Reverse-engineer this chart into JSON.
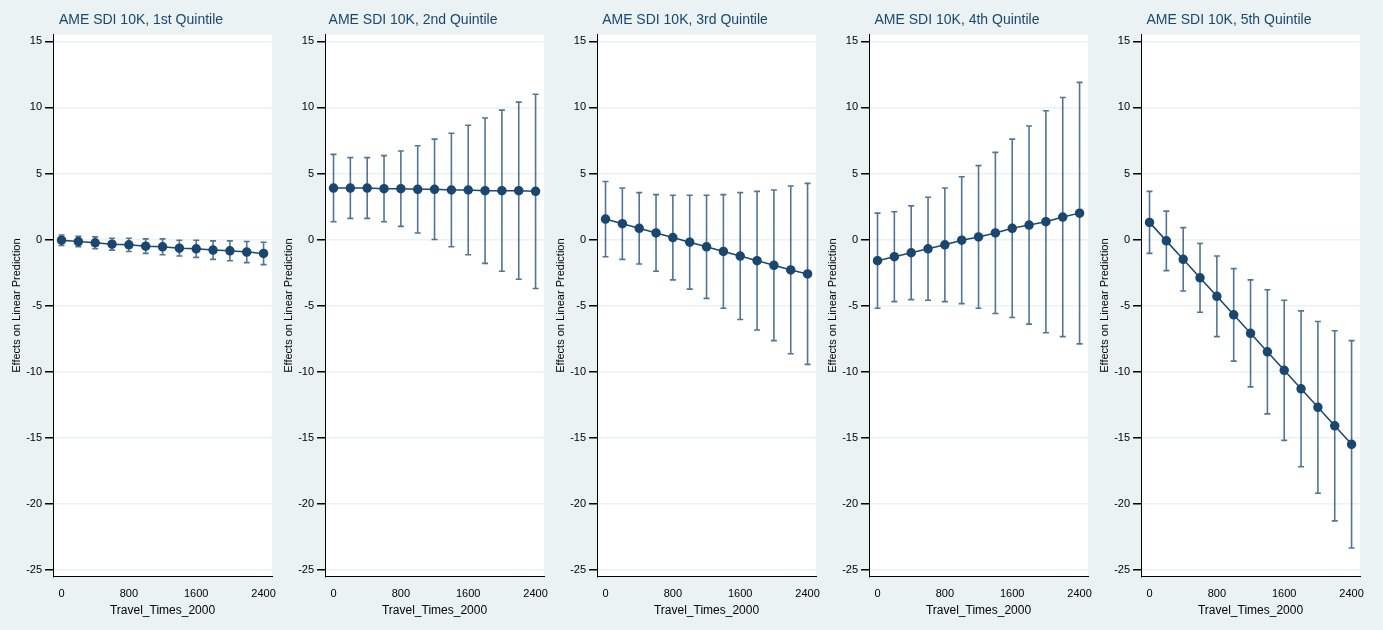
{
  "chart_data": [
    {
      "type": "line",
      "title": "AME SDI 10K, 1st Quintile",
      "xlabel": "Travel_Times_2000",
      "ylabel": "Effects on Linear Prediction",
      "color": "#1a476f",
      "marker": "circle",
      "grid": "y",
      "legend": false,
      "x": [
        0,
        200,
        400,
        600,
        800,
        1000,
        1200,
        1400,
        1600,
        1800,
        2000,
        2200,
        2400
      ],
      "values": [
        -0.05,
        -0.15,
        -0.25,
        -0.35,
        -0.4,
        -0.5,
        -0.55,
        -0.65,
        -0.7,
        -0.8,
        -0.85,
        -0.95,
        -1.05
      ],
      "errors": [
        0.4,
        0.4,
        0.45,
        0.45,
        0.5,
        0.55,
        0.6,
        0.6,
        0.65,
        0.7,
        0.75,
        0.8,
        0.85
      ],
      "xlim": [
        -100,
        2500
      ],
      "xticks": [
        0,
        800,
        1600,
        2400
      ],
      "ylim": [
        -25.5,
        15.5
      ],
      "yticks": [
        -25,
        -20,
        -15,
        -10,
        -5,
        0,
        5,
        10,
        15
      ]
    },
    {
      "type": "line",
      "title": "AME SDI 10K, 2nd Quintile",
      "xlabel": "Travel_Times_2000",
      "ylabel": "Effects on Linear Prediction",
      "color": "#1a476f",
      "marker": "circle",
      "grid": "y",
      "legend": false,
      "x": [
        0,
        200,
        400,
        600,
        800,
        1000,
        1200,
        1400,
        1600,
        1800,
        2000,
        2200,
        2400
      ],
      "values": [
        3.9,
        3.9,
        3.9,
        3.85,
        3.85,
        3.8,
        3.8,
        3.75,
        3.75,
        3.7,
        3.7,
        3.7,
        3.65
      ],
      "errors": [
        2.55,
        2.3,
        2.3,
        2.5,
        2.85,
        3.3,
        3.8,
        4.3,
        4.9,
        5.5,
        6.1,
        6.7,
        7.35
      ],
      "xlim": [
        -100,
        2500
      ],
      "xticks": [
        0,
        800,
        1600,
        2400
      ],
      "ylim": [
        -25.5,
        15.5
      ],
      "yticks": [
        -25,
        -20,
        -15,
        -10,
        -5,
        0,
        5,
        10,
        15
      ]
    },
    {
      "type": "line",
      "title": "AME SDI 10K, 3rd Quintile",
      "xlabel": "Travel_Times_2000",
      "ylabel": "Effects on Linear Prediction",
      "color": "#1a476f",
      "marker": "circle",
      "grid": "y",
      "legend": false,
      "x": [
        0,
        200,
        400,
        600,
        800,
        1000,
        1200,
        1400,
        1600,
        1800,
        2000,
        2200,
        2400
      ],
      "values": [
        1.55,
        1.2,
        0.85,
        0.5,
        0.15,
        -0.2,
        -0.55,
        -0.9,
        -1.25,
        -1.6,
        -1.95,
        -2.3,
        -2.6
      ],
      "errors": [
        2.85,
        2.7,
        2.7,
        2.9,
        3.2,
        3.55,
        3.9,
        4.3,
        4.8,
        5.25,
        5.7,
        6.35,
        6.85
      ],
      "xlim": [
        -100,
        2500
      ],
      "xticks": [
        0,
        800,
        1600,
        2400
      ],
      "ylim": [
        -25.5,
        15.5
      ],
      "yticks": [
        -25,
        -20,
        -15,
        -10,
        -5,
        0,
        5,
        10,
        15
      ]
    },
    {
      "type": "line",
      "title": "AME SDI 10K, 4th Quintile",
      "xlabel": "Travel_Times_2000",
      "ylabel": "Effects on Linear Prediction",
      "color": "#1a476f",
      "marker": "circle",
      "grid": "y",
      "legend": false,
      "x": [
        0,
        200,
        400,
        600,
        800,
        1000,
        1200,
        1400,
        1600,
        1800,
        2000,
        2200,
        2400
      ],
      "values": [
        -1.6,
        -1.3,
        -1.0,
        -0.7,
        -0.4,
        -0.05,
        0.2,
        0.5,
        0.85,
        1.1,
        1.35,
        1.7,
        2.0
      ],
      "errors": [
        3.6,
        3.4,
        3.55,
        3.9,
        4.3,
        4.8,
        5.4,
        6.1,
        6.75,
        7.5,
        8.4,
        9.05,
        9.9
      ],
      "xlim": [
        -100,
        2500
      ],
      "xticks": [
        0,
        800,
        1600,
        2400
      ],
      "ylim": [
        -25.5,
        15.5
      ],
      "yticks": [
        -25,
        -20,
        -15,
        -10,
        -5,
        0,
        5,
        10,
        15
      ]
    },
    {
      "type": "line",
      "title": "AME SDI 10K, 5th Quintile",
      "xlabel": "Travel_Times_2000",
      "ylabel": "Effects on Linear Prediction",
      "color": "#1a476f",
      "marker": "circle",
      "grid": "y",
      "legend": false,
      "x": [
        0,
        200,
        400,
        600,
        800,
        1000,
        1200,
        1400,
        1600,
        1800,
        2000,
        2200,
        2400
      ],
      "values": [
        1.3,
        -0.1,
        -1.5,
        -2.9,
        -4.3,
        -5.7,
        -7.1,
        -8.5,
        -9.9,
        -11.3,
        -12.7,
        -14.1,
        -15.5
      ],
      "errors": [
        2.35,
        2.25,
        2.4,
        2.6,
        3.05,
        3.5,
        4.05,
        4.7,
        5.3,
        5.9,
        6.5,
        7.2,
        7.85
      ],
      "xlim": [
        -100,
        2500
      ],
      "xticks": [
        0,
        800,
        1600,
        2400
      ],
      "ylim": [
        -25.5,
        15.5
      ],
      "yticks": [
        -25,
        -20,
        -15,
        -10,
        -5,
        0,
        5,
        10,
        15
      ]
    }
  ]
}
